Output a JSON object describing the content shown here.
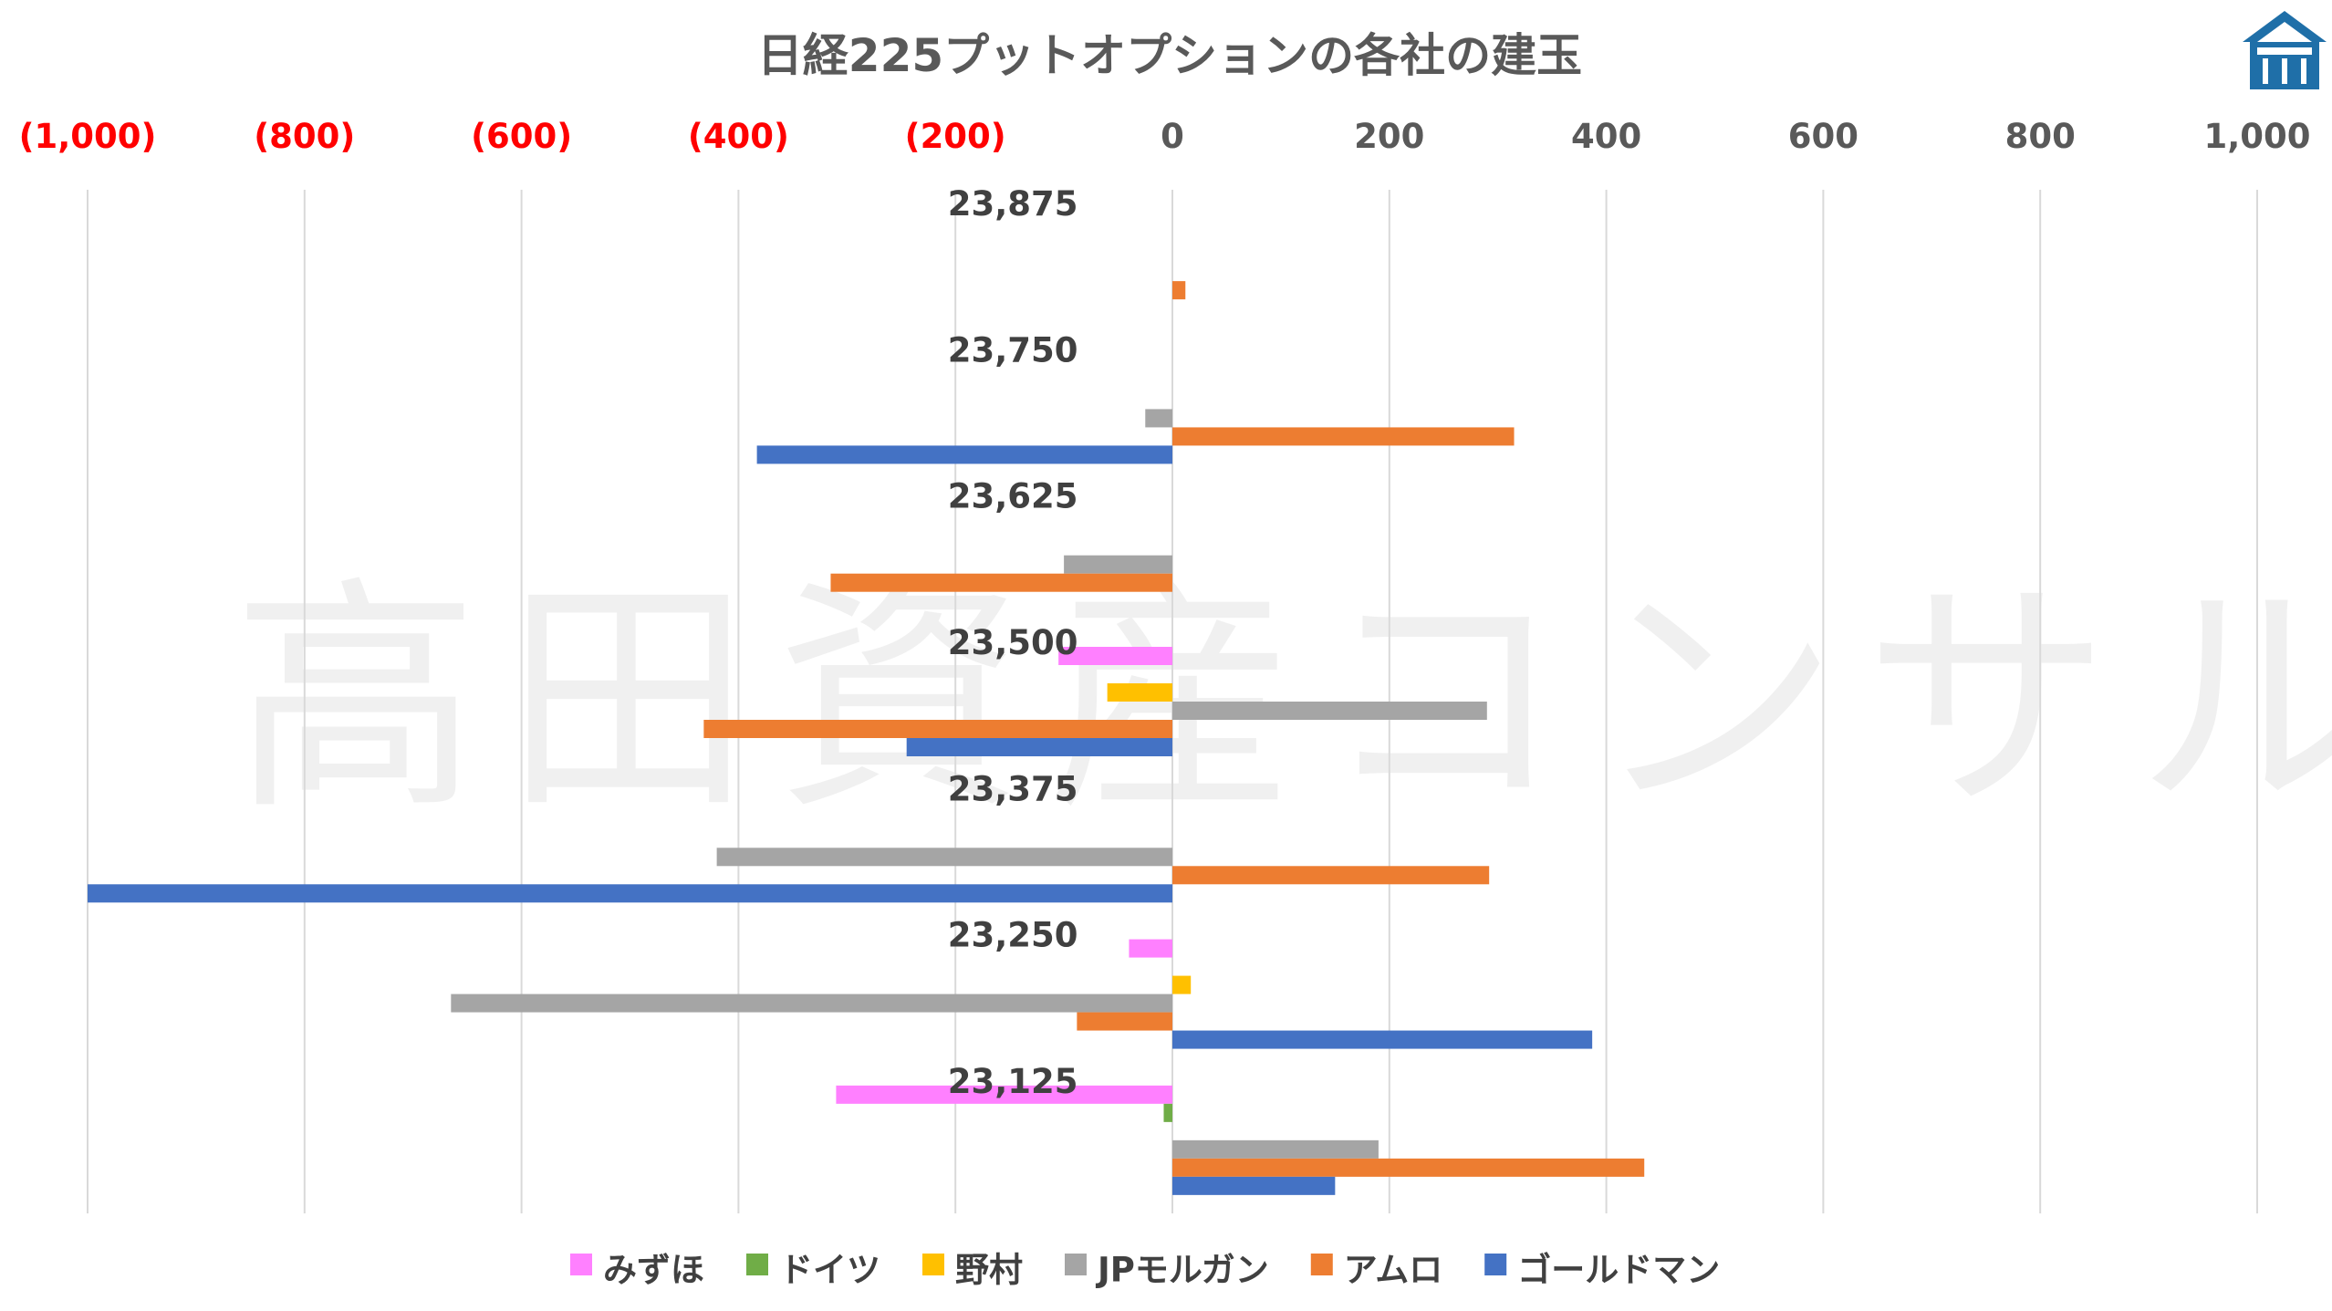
{
  "chart_data": {
    "type": "bar",
    "orientation": "horizontal",
    "title": "日経225プットオプションの各社の建玉",
    "xlim": [
      -1000,
      1000
    ],
    "x_ticks": [
      -1000,
      -800,
      -600,
      -400,
      -200,
      0,
      200,
      400,
      600,
      800,
      1000
    ],
    "x_tick_labels": [
      "(1,000)",
      "(800)",
      "(600)",
      "(400)",
      "(200)",
      "0",
      "200",
      "400",
      "600",
      "800",
      "1,000"
    ],
    "negative_tick_color": "#ff0000",
    "positive_tick_color": "#595959",
    "grid": true,
    "legend_position": "bottom",
    "categories": [
      "23,875",
      "23,750",
      "23,625",
      "23,500",
      "23,375",
      "23,250",
      "23,125"
    ],
    "series": [
      {
        "name": "みずほ",
        "color": "#ff80ff",
        "values": [
          0,
          0,
          0,
          -105,
          0,
          -40,
          -310
        ]
      },
      {
        "name": "ドイツ",
        "color": "#70ad47",
        "values": [
          0,
          0,
          0,
          0,
          0,
          0,
          -8
        ]
      },
      {
        "name": "野村",
        "color": "#ffc000",
        "values": [
          0,
          0,
          0,
          -60,
          0,
          17,
          0
        ]
      },
      {
        "name": "JPモルガン",
        "color": "#a5a5a5",
        "values": [
          0,
          -25,
          -100,
          290,
          -420,
          -665,
          190
        ]
      },
      {
        "name": "アムロ",
        "color": "#ed7d31",
        "values": [
          12,
          315,
          -315,
          -432,
          292,
          -88,
          435
        ]
      },
      {
        "name": "ゴールドマン",
        "color": "#4472c4",
        "values": [
          0,
          -383,
          0,
          -245,
          -1000,
          387,
          150
        ]
      }
    ]
  },
  "watermark": "高田資産コンサル",
  "logo": {
    "name": "house-logo-icon",
    "color": "#1f6fa8"
  }
}
